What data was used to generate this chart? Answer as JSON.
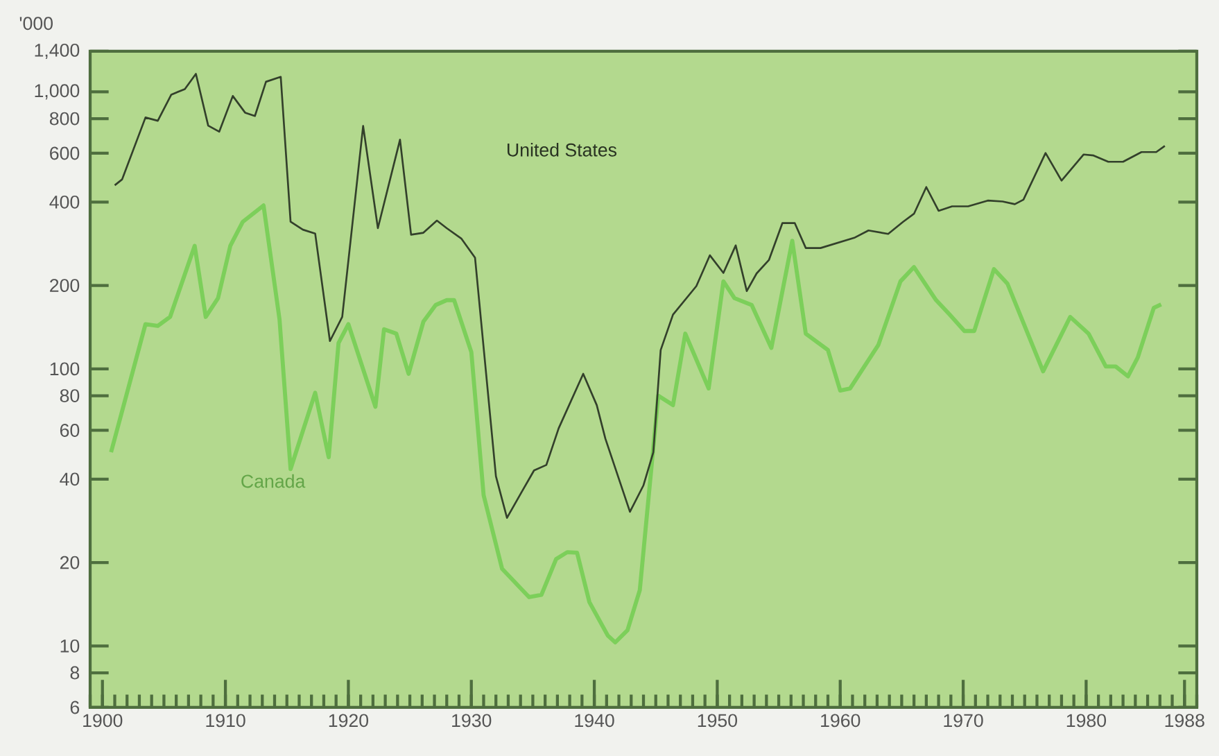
{
  "chart_data": {
    "type": "line",
    "ylabel": "'000",
    "log": true,
    "xlim": [
      1899,
      1989
    ],
    "xticks": [
      1900,
      1910,
      1920,
      1930,
      1940,
      1950,
      1960,
      1970,
      1980,
      1988
    ],
    "ylim": [
      6,
      1400
    ],
    "yticks": [
      6,
      8,
      10,
      20,
      40,
      60,
      80,
      100,
      200,
      400,
      600,
      800,
      {
        "value": 1000,
        "label": "1,000"
      },
      {
        "value": 1400,
        "label": "1,400"
      }
    ],
    "series": [
      {
        "name": "United States",
        "color": "#33402b",
        "x": [
          1901,
          1901.6,
          1903.5,
          1904.5,
          1905.6,
          1906.7,
          1907.6,
          1908.6,
          1909.5,
          1910.6,
          1911.6,
          1912.4,
          1913.3,
          1914.5,
          1915.3,
          1916.3,
          1917.3,
          1918.5,
          1919.5,
          1921.2,
          1922.4,
          1924.2,
          1925.1,
          1926.1,
          1927.2,
          1928,
          1929.2,
          1930.3,
          1932,
          1932.9,
          1934.1,
          1935.1,
          1936.1,
          1937.1,
          1939.1,
          1940.2,
          1940.9,
          1942.9,
          1944,
          1944.8,
          1945.4,
          1946.4,
          1948.3,
          1949.4,
          1950.5,
          1951.5,
          1952.4,
          1953.2,
          1954.2,
          1955.3,
          1956.3,
          1957.2,
          1958.4,
          1961.2,
          1962.3,
          1963.9,
          1965.1,
          1966,
          1967,
          1968,
          1969.1,
          1970.4,
          1972,
          1973.2,
          1974.2,
          1974.9,
          1976.7,
          1978,
          1979.8,
          1980.6,
          1981.8,
          1983,
          1984.5,
          1985.7,
          1986.4
        ],
        "values": [
          460,
          483,
          808,
          786,
          977,
          1023,
          1161,
          755,
          718,
          966,
          841,
          818,
          1087,
          1132,
          340,
          318,
          308,
          126,
          154,
          753,
          322,
          672,
          305,
          310,
          343,
          322,
          295,
          252,
          41,
          29,
          36,
          43,
          45,
          61,
          96,
          74,
          56,
          30.5,
          38,
          50,
          117,
          157,
          199,
          257,
          222,
          279,
          191,
          221,
          247,
          336,
          336,
          273,
          273,
          298,
          316,
          307,
          339,
          363,
          453,
          372,
          386,
          386,
          405,
          402,
          393,
          408,
          601,
          478,
          594,
          589,
          559,
          559,
          606,
          606,
          638
        ]
      },
      {
        "name": "Canada",
        "color": "#7ccf5a",
        "x": [
          1900.7,
          1903.5,
          1904.5,
          1905.5,
          1907.5,
          1908.4,
          1909.4,
          1910.4,
          1911.4,
          1913.1,
          1914.4,
          1915.3,
          1917.3,
          1918.4,
          1919.2,
          1920,
          1922.2,
          1922.9,
          1923.9,
          1924.9,
          1926.1,
          1927.1,
          1928,
          1928.6,
          1930,
          1931,
          1932.5,
          1934.7,
          1935.7,
          1936.9,
          1937.8,
          1938.6,
          1939.6,
          1941.1,
          1941.7,
          1942.7,
          1943.7,
          1945.2,
          1946.4,
          1947.4,
          1949.3,
          1950.5,
          1951.4,
          1952.8,
          1954.4,
          1956.1,
          1957.2,
          1959,
          1960,
          1960.8,
          1963.1,
          1964.9,
          1966,
          1967.8,
          1968.9,
          1970.1,
          1970.9,
          1972.5,
          1973.6,
          1976.5,
          1978.7,
          1980.2,
          1981.6,
          1982.4,
          1983.4,
          1984.2,
          1985.5,
          1986.1
        ],
        "values": [
          50,
          145,
          143,
          154,
          278,
          154,
          180,
          278,
          339,
          389,
          151,
          43.5,
          82,
          48,
          124,
          145,
          73,
          139,
          134,
          96,
          148,
          170,
          177,
          177,
          115,
          35,
          19,
          15,
          15.3,
          20.6,
          21.8,
          21.7,
          14.4,
          10.9,
          10.3,
          11.4,
          15.9,
          80,
          74,
          134,
          85,
          207,
          180,
          170,
          119,
          290,
          134,
          117,
          83.5,
          85,
          122,
          207,
          233,
          177,
          157,
          137,
          137,
          229,
          203,
          98,
          154,
          134,
          102,
          102,
          94,
          110,
          166,
          171
        ]
      }
    ]
  }
}
